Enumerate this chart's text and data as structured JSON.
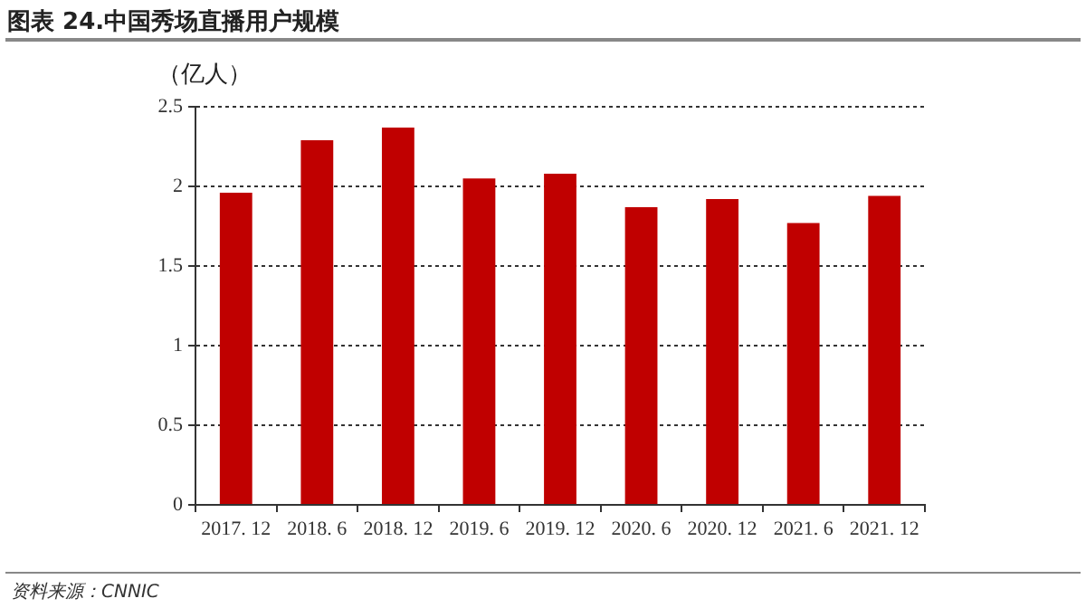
{
  "chart_data": {
    "type": "bar",
    "title": "图表 24.中国秀场直播用户规模",
    "ylabel": "（亿人）",
    "categories": [
      "2017. 12",
      "2018. 6",
      "2018. 12",
      "2019. 6",
      "2019. 12",
      "2020. 6",
      "2020. 12",
      "2021. 6",
      "2021. 12"
    ],
    "values": [
      1.96,
      2.29,
      2.37,
      2.05,
      2.08,
      1.87,
      1.92,
      1.77,
      1.94
    ],
    "color": "#c00000",
    "ylim": [
      0,
      2.5
    ],
    "yticks": [
      0,
      0.5,
      1,
      1.5,
      2,
      2.5
    ],
    "grid": "y",
    "annotations": [
      "资料来源：CNNIC"
    ]
  }
}
